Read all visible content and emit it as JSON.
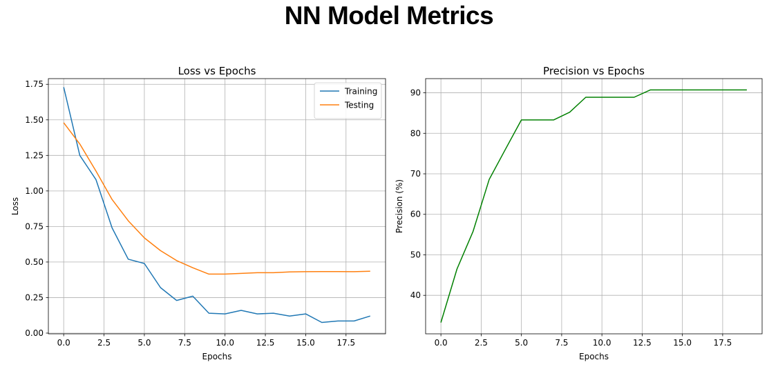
{
  "figure": {
    "suptitle": "NN Model Metrics"
  },
  "chart_data": [
    {
      "type": "line",
      "title": "Loss vs Epochs",
      "xlabel": "Epochs",
      "ylabel": "Loss",
      "xlim": [
        -0.95,
        19.95
      ],
      "ylim": [
        -0.005,
        1.79
      ],
      "xticks": [
        0,
        2.5,
        5,
        7.5,
        10,
        12.5,
        15,
        17.5
      ],
      "xtick_labels": [
        "0.0",
        "2.5",
        "5.0",
        "7.5",
        "10.0",
        "12.5",
        "15.0",
        "17.5"
      ],
      "yticks": [
        0,
        0.25,
        0.5,
        0.75,
        1.0,
        1.25,
        1.5,
        1.75
      ],
      "ytick_labels": [
        "0.00",
        "0.25",
        "0.50",
        "0.75",
        "1.00",
        "1.25",
        "1.50",
        "1.75"
      ],
      "grid": true,
      "legend": "top-right",
      "x": [
        0,
        1,
        2,
        3,
        4,
        5,
        6,
        7,
        8,
        9,
        10,
        11,
        12,
        13,
        14,
        15,
        16,
        17,
        18,
        19
      ],
      "series": [
        {
          "name": "Training",
          "color": "#1f77b4",
          "values": [
            1.73,
            1.25,
            1.08,
            0.74,
            0.52,
            0.49,
            0.32,
            0.23,
            0.26,
            0.14,
            0.135,
            0.16,
            0.135,
            0.14,
            0.12,
            0.135,
            0.075,
            0.085,
            0.085,
            0.12
          ]
        },
        {
          "name": "Testing",
          "color": "#ff7f0e",
          "values": [
            1.48,
            1.33,
            1.14,
            0.94,
            0.79,
            0.67,
            0.58,
            0.51,
            0.46,
            0.415,
            0.415,
            0.42,
            0.425,
            0.425,
            0.43,
            0.432,
            0.433,
            0.433,
            0.432,
            0.435
          ]
        }
      ]
    },
    {
      "type": "line",
      "title": "Precision vs Epochs",
      "xlabel": "Epochs",
      "ylabel": "Precision (%)",
      "xlim": [
        -0.95,
        19.95
      ],
      "ylim": [
        30.5,
        93.5
      ],
      "xticks": [
        0,
        2.5,
        5,
        7.5,
        10,
        12.5,
        15,
        17.5
      ],
      "xtick_labels": [
        "0.0",
        "2.5",
        "5.0",
        "7.5",
        "10.0",
        "12.5",
        "15.0",
        "17.5"
      ],
      "yticks": [
        40,
        50,
        60,
        70,
        80,
        90
      ],
      "ytick_labels": [
        "40",
        "50",
        "60",
        "70",
        "80",
        "90"
      ],
      "grid": true,
      "x": [
        0,
        1,
        2,
        3,
        4,
        5,
        6,
        7,
        8,
        9,
        10,
        11,
        12,
        13,
        14,
        15,
        16,
        17,
        18,
        19
      ],
      "series": [
        {
          "color": "#008000",
          "values": [
            33.3,
            46.5,
            55.8,
            68.6,
            76.0,
            83.3,
            83.3,
            83.3,
            85.2,
            88.9,
            88.9,
            88.9,
            88.9,
            90.7,
            90.7,
            90.7,
            90.7,
            90.7,
            90.7,
            90.7
          ]
        }
      ]
    }
  ]
}
